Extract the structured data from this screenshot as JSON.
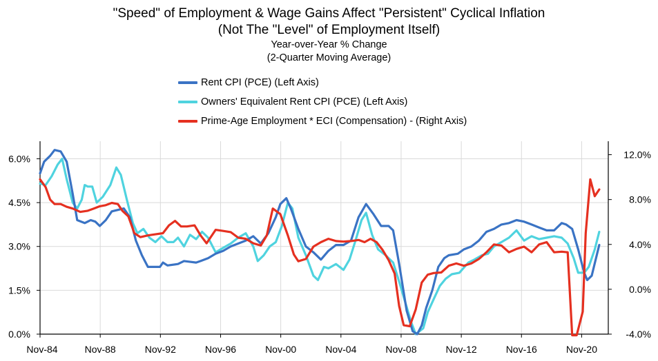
{
  "chart_data": {
    "type": "line",
    "title": "\"Speed\" of Employment & Wage Gains Affect \"Persistent\" Cyclical Inflation",
    "title_line2": "(Not The \"Level\" of Employment Itself)",
    "subtitle": "Year-over-Year % Change",
    "subtitle_line2": "(2-Quarter Moving Average)",
    "x_tick_labels": [
      "Nov-84",
      "Nov-88",
      "Nov-92",
      "Nov-96",
      "Nov-00",
      "Nov-04",
      "Nov-08",
      "Nov-12",
      "Nov-16",
      "Nov-20"
    ],
    "xlim": [
      1984.83,
      2022.6
    ],
    "left_axis": {
      "ylim": [
        0,
        6.6
      ],
      "tick_values": [
        0,
        1.5,
        3.0,
        4.5,
        6.0
      ],
      "tick_labels": [
        "0.0%",
        "1.5%",
        "3.0%",
        "4.5%",
        "6.0%"
      ]
    },
    "right_axis": {
      "ylim": [
        -4,
        13.2
      ],
      "tick_values": [
        -4,
        0,
        4,
        8,
        12
      ],
      "tick_labels": [
        "-4.0%",
        "0.0%",
        "4.0%",
        "8.0%",
        "12.0%"
      ]
    },
    "series": [
      {
        "name": "Rent CPI (PCE) (Left Axis)",
        "color": "#3a73c4",
        "axis": "left",
        "points": [
          [
            1984.83,
            5.5
          ],
          [
            1985.1,
            5.9
          ],
          [
            1985.5,
            6.1
          ],
          [
            1985.8,
            6.3
          ],
          [
            1986.2,
            6.25
          ],
          [
            1986.6,
            5.9
          ],
          [
            1987.0,
            4.8
          ],
          [
            1987.3,
            3.9
          ],
          [
            1987.8,
            3.8
          ],
          [
            1988.2,
            3.9
          ],
          [
            1988.5,
            3.85
          ],
          [
            1988.8,
            3.7
          ],
          [
            1989.2,
            3.9
          ],
          [
            1989.6,
            4.2
          ],
          [
            1990.0,
            4.25
          ],
          [
            1990.4,
            4.3
          ],
          [
            1990.8,
            4.0
          ],
          [
            1991.2,
            3.2
          ],
          [
            1991.6,
            2.7
          ],
          [
            1992.0,
            2.3
          ],
          [
            1992.8,
            2.3
          ],
          [
            1993.0,
            2.45
          ],
          [
            1993.3,
            2.35
          ],
          [
            1994.0,
            2.4
          ],
          [
            1994.4,
            2.5
          ],
          [
            1995.2,
            2.45
          ],
          [
            1995.5,
            2.5
          ],
          [
            1996.0,
            2.6
          ],
          [
            1996.5,
            2.75
          ],
          [
            1997.0,
            2.85
          ],
          [
            1997.5,
            3.0
          ],
          [
            1998.0,
            3.1
          ],
          [
            1998.5,
            3.2
          ],
          [
            1999.0,
            3.35
          ],
          [
            1999.5,
            3.1
          ],
          [
            2000.0,
            3.45
          ],
          [
            2000.5,
            4.0
          ],
          [
            2000.8,
            4.45
          ],
          [
            2001.2,
            4.65
          ],
          [
            2001.5,
            4.3
          ],
          [
            2002.0,
            3.6
          ],
          [
            2002.5,
            3.0
          ],
          [
            2003.0,
            2.8
          ],
          [
            2003.5,
            2.55
          ],
          [
            2004.0,
            2.85
          ],
          [
            2004.5,
            3.05
          ],
          [
            2005.0,
            3.05
          ],
          [
            2005.5,
            3.2
          ],
          [
            2006.0,
            4.0
          ],
          [
            2006.5,
            4.45
          ],
          [
            2007.0,
            4.1
          ],
          [
            2007.5,
            3.7
          ],
          [
            2008.0,
            3.7
          ],
          [
            2008.3,
            3.55
          ],
          [
            2008.7,
            2.4
          ],
          [
            2009.2,
            0.8
          ],
          [
            2009.6,
            0.1
          ],
          [
            2009.9,
            0.0
          ],
          [
            2010.2,
            0.3
          ],
          [
            2010.5,
            0.9
          ],
          [
            2010.9,
            1.5
          ],
          [
            2011.3,
            2.3
          ],
          [
            2011.7,
            2.6
          ],
          [
            2012.0,
            2.7
          ],
          [
            2012.6,
            2.75
          ],
          [
            2013.0,
            2.9
          ],
          [
            2013.5,
            3.0
          ],
          [
            2014.0,
            3.2
          ],
          [
            2014.5,
            3.5
          ],
          [
            2015.0,
            3.6
          ],
          [
            2015.5,
            3.75
          ],
          [
            2016.0,
            3.8
          ],
          [
            2016.5,
            3.9
          ],
          [
            2017.0,
            3.85
          ],
          [
            2017.5,
            3.75
          ],
          [
            2018.0,
            3.65
          ],
          [
            2018.5,
            3.55
          ],
          [
            2019.0,
            3.55
          ],
          [
            2019.5,
            3.8
          ],
          [
            2019.8,
            3.75
          ],
          [
            2020.2,
            3.6
          ],
          [
            2020.6,
            2.9
          ],
          [
            2021.0,
            2.1
          ],
          [
            2021.2,
            1.85
          ],
          [
            2021.5,
            2.0
          ],
          [
            2022.0,
            3.05
          ]
        ]
      },
      {
        "name": "Owners' Equivalent Rent CPI (PCE) (Left Axis)",
        "color": "#4fd3df",
        "axis": "left",
        "points": [
          [
            1984.83,
            5.15
          ],
          [
            1985.2,
            5.1
          ],
          [
            1985.6,
            5.4
          ],
          [
            1986.0,
            5.8
          ],
          [
            1986.3,
            6.0
          ],
          [
            1986.6,
            5.3
          ],
          [
            1987.0,
            4.5
          ],
          [
            1987.3,
            4.3
          ],
          [
            1987.6,
            4.6
          ],
          [
            1987.8,
            5.1
          ],
          [
            1988.0,
            5.05
          ],
          [
            1988.3,
            5.05
          ],
          [
            1988.6,
            4.5
          ],
          [
            1989.0,
            4.7
          ],
          [
            1989.5,
            5.1
          ],
          [
            1989.9,
            5.7
          ],
          [
            1990.2,
            5.45
          ],
          [
            1990.6,
            4.6
          ],
          [
            1991.0,
            3.8
          ],
          [
            1991.3,
            3.45
          ],
          [
            1991.7,
            3.6
          ],
          [
            1992.1,
            3.3
          ],
          [
            1992.5,
            3.15
          ],
          [
            1992.9,
            3.35
          ],
          [
            1993.3,
            3.15
          ],
          [
            1993.7,
            3.15
          ],
          [
            1994.0,
            3.3
          ],
          [
            1994.4,
            3.0
          ],
          [
            1994.8,
            3.4
          ],
          [
            1995.2,
            3.25
          ],
          [
            1995.6,
            3.5
          ],
          [
            1996.0,
            3.3
          ],
          [
            1996.5,
            2.8
          ],
          [
            1997.0,
            2.95
          ],
          [
            1997.5,
            3.1
          ],
          [
            1998.0,
            3.3
          ],
          [
            1998.5,
            3.45
          ],
          [
            1999.0,
            3.0
          ],
          [
            1999.3,
            2.5
          ],
          [
            1999.7,
            2.7
          ],
          [
            2000.1,
            3.0
          ],
          [
            2000.5,
            3.15
          ],
          [
            2000.9,
            3.7
          ],
          [
            2001.3,
            4.5
          ],
          [
            2001.6,
            4.3
          ],
          [
            2002.0,
            3.3
          ],
          [
            2002.5,
            2.7
          ],
          [
            2003.0,
            2.0
          ],
          [
            2003.3,
            1.85
          ],
          [
            2003.7,
            2.3
          ],
          [
            2004.0,
            2.25
          ],
          [
            2004.5,
            2.4
          ],
          [
            2005.0,
            2.2
          ],
          [
            2005.4,
            2.55
          ],
          [
            2005.8,
            3.2
          ],
          [
            2006.2,
            3.9
          ],
          [
            2006.5,
            4.15
          ],
          [
            2006.9,
            3.4
          ],
          [
            2007.3,
            2.9
          ],
          [
            2007.8,
            2.7
          ],
          [
            2008.3,
            2.45
          ],
          [
            2008.7,
            1.8
          ],
          [
            2009.1,
            1.1
          ],
          [
            2009.5,
            0.4
          ],
          [
            2009.8,
            0.0
          ],
          [
            2010.3,
            0.2
          ],
          [
            2010.6,
            0.75
          ],
          [
            2011.0,
            1.2
          ],
          [
            2011.4,
            1.65
          ],
          [
            2011.8,
            1.9
          ],
          [
            2012.2,
            2.05
          ],
          [
            2012.7,
            2.1
          ],
          [
            2013.3,
            2.45
          ],
          [
            2013.7,
            2.55
          ],
          [
            2014.2,
            2.7
          ],
          [
            2014.6,
            2.75
          ],
          [
            2015.0,
            3.0
          ],
          [
            2015.5,
            3.15
          ],
          [
            2016.0,
            3.3
          ],
          [
            2016.5,
            3.55
          ],
          [
            2017.0,
            3.2
          ],
          [
            2017.5,
            3.35
          ],
          [
            2018.0,
            3.25
          ],
          [
            2018.5,
            3.3
          ],
          [
            2019.0,
            3.35
          ],
          [
            2019.5,
            3.3
          ],
          [
            2019.9,
            3.1
          ],
          [
            2020.3,
            2.6
          ],
          [
            2020.6,
            2.1
          ],
          [
            2021.0,
            2.1
          ],
          [
            2021.3,
            2.3
          ],
          [
            2021.7,
            2.9
          ],
          [
            2022.0,
            3.5
          ]
        ]
      },
      {
        "name": "Prime-Age Employment * ECI (Compensation) - (Right Axis)",
        "color": "#e53020",
        "axis": "right",
        "points": [
          [
            1984.83,
            9.8
          ],
          [
            1985.2,
            9.1
          ],
          [
            1985.5,
            8.0
          ],
          [
            1985.8,
            7.6
          ],
          [
            1986.2,
            7.6
          ],
          [
            1986.6,
            7.35
          ],
          [
            1987.0,
            7.2
          ],
          [
            1987.5,
            6.9
          ],
          [
            1988.0,
            7.0
          ],
          [
            1988.4,
            7.2
          ],
          [
            1988.8,
            7.4
          ],
          [
            1989.2,
            7.5
          ],
          [
            1989.6,
            7.7
          ],
          [
            1990.0,
            7.6
          ],
          [
            1990.3,
            7.0
          ],
          [
            1990.7,
            6.5
          ],
          [
            1991.1,
            5.0
          ],
          [
            1991.5,
            4.65
          ],
          [
            1992.0,
            4.8
          ],
          [
            1992.5,
            4.9
          ],
          [
            1993.0,
            5.0
          ],
          [
            1993.4,
            5.7
          ],
          [
            1993.8,
            6.1
          ],
          [
            1994.2,
            5.6
          ],
          [
            1994.6,
            5.6
          ],
          [
            1995.1,
            5.7
          ],
          [
            1995.5,
            4.8
          ],
          [
            1995.9,
            4.1
          ],
          [
            1996.5,
            5.3
          ],
          [
            1997.0,
            5.2
          ],
          [
            1997.5,
            5.1
          ],
          [
            1998.0,
            4.6
          ],
          [
            1998.5,
            4.5
          ],
          [
            1999.0,
            4.1
          ],
          [
            1999.5,
            3.9
          ],
          [
            1999.9,
            4.8
          ],
          [
            2000.3,
            7.2
          ],
          [
            2000.8,
            6.7
          ],
          [
            2001.3,
            4.8
          ],
          [
            2001.7,
            3.1
          ],
          [
            2002.0,
            2.5
          ],
          [
            2002.5,
            2.7
          ],
          [
            2003.0,
            3.8
          ],
          [
            2003.5,
            4.2
          ],
          [
            2004.0,
            4.5
          ],
          [
            2004.5,
            4.3
          ],
          [
            2005.0,
            4.25
          ],
          [
            2005.5,
            4.3
          ],
          [
            2006.0,
            4.4
          ],
          [
            2006.4,
            4.2
          ],
          [
            2006.8,
            4.5
          ],
          [
            2007.2,
            4.2
          ],
          [
            2007.6,
            3.5
          ],
          [
            2008.0,
            2.6
          ],
          [
            2008.4,
            1.4
          ],
          [
            2008.7,
            -1.5
          ],
          [
            2009.0,
            -3.2
          ],
          [
            2009.4,
            -3.3
          ],
          [
            2009.8,
            -1.8
          ],
          [
            2010.2,
            0.6
          ],
          [
            2010.6,
            1.3
          ],
          [
            2011.0,
            1.45
          ],
          [
            2011.5,
            1.5
          ],
          [
            2012.0,
            2.1
          ],
          [
            2012.5,
            2.3
          ],
          [
            2013.0,
            2.1
          ],
          [
            2013.5,
            2.3
          ],
          [
            2014.0,
            2.7
          ],
          [
            2014.5,
            3.3
          ],
          [
            2015.0,
            4.0
          ],
          [
            2015.5,
            3.9
          ],
          [
            2016.0,
            3.3
          ],
          [
            2016.5,
            3.6
          ],
          [
            2017.0,
            3.8
          ],
          [
            2017.5,
            3.3
          ],
          [
            2018.0,
            4.0
          ],
          [
            2018.5,
            4.2
          ],
          [
            2019.0,
            3.3
          ],
          [
            2019.5,
            3.35
          ],
          [
            2019.9,
            3.3
          ],
          [
            2020.2,
            -4.1
          ],
          [
            2020.5,
            -4.1
          ],
          [
            2020.9,
            -2.0
          ],
          [
            2021.1,
            5.0
          ],
          [
            2021.4,
            9.8
          ],
          [
            2021.7,
            8.3
          ],
          [
            2022.0,
            8.9
          ]
        ]
      }
    ]
  }
}
